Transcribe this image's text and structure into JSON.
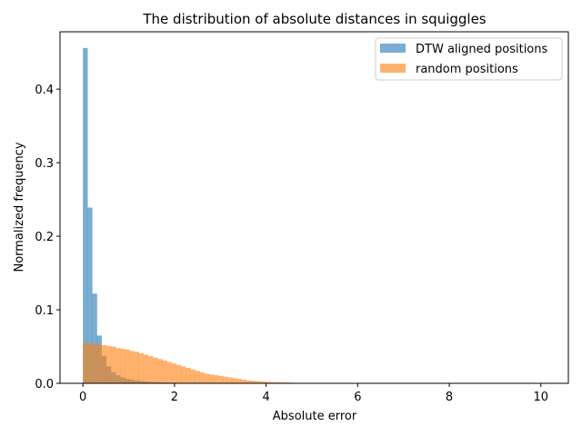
{
  "chart_data": {
    "type": "bar",
    "title": "The distribution of absolute distances in squiggles",
    "xlabel": "Absolute error",
    "ylabel": "Normalized frequency",
    "xlim": [
      -0.5,
      10.6
    ],
    "ylim": [
      0,
      0.478
    ],
    "x_ticks": [
      0,
      2,
      4,
      6,
      8,
      10
    ],
    "y_ticks": [
      0.0,
      0.1,
      0.2,
      0.3,
      0.4
    ],
    "bin_width": 0.102,
    "legend_position": "top-right",
    "grid": false,
    "series": [
      {
        "name": "DTW aligned positions",
        "color": "#1f77b4",
        "opacity": 0.6,
        "bin_start": 0.0,
        "values": [
          0.456,
          0.239,
          0.122,
          0.065,
          0.037,
          0.023,
          0.015,
          0.011,
          0.008,
          0.006,
          0.005,
          0.004,
          0.003,
          0.0025,
          0.002,
          0.0017,
          0.0014,
          0.0011,
          0.0009,
          0.0007,
          0.0005,
          0.0004,
          0.0003,
          0.0002,
          0.0002,
          0.0001
        ]
      },
      {
        "name": "random positions",
        "color": "#ff7f0e",
        "opacity": 0.6,
        "bin_start": 0.0,
        "values": [
          0.055,
          0.054,
          0.054,
          0.053,
          0.052,
          0.051,
          0.05,
          0.048,
          0.047,
          0.046,
          0.044,
          0.043,
          0.041,
          0.039,
          0.037,
          0.035,
          0.033,
          0.031,
          0.029,
          0.027,
          0.025,
          0.023,
          0.021,
          0.019,
          0.017,
          0.015,
          0.013,
          0.012,
          0.011,
          0.01,
          0.009,
          0.008,
          0.007,
          0.006,
          0.005,
          0.004,
          0.0035,
          0.003,
          0.0025,
          0.002,
          0.0018,
          0.0016,
          0.0014,
          0.0012,
          0.001,
          0.0008,
          0.0006,
          0.0005,
          0.0004,
          0.0003
        ]
      }
    ]
  }
}
